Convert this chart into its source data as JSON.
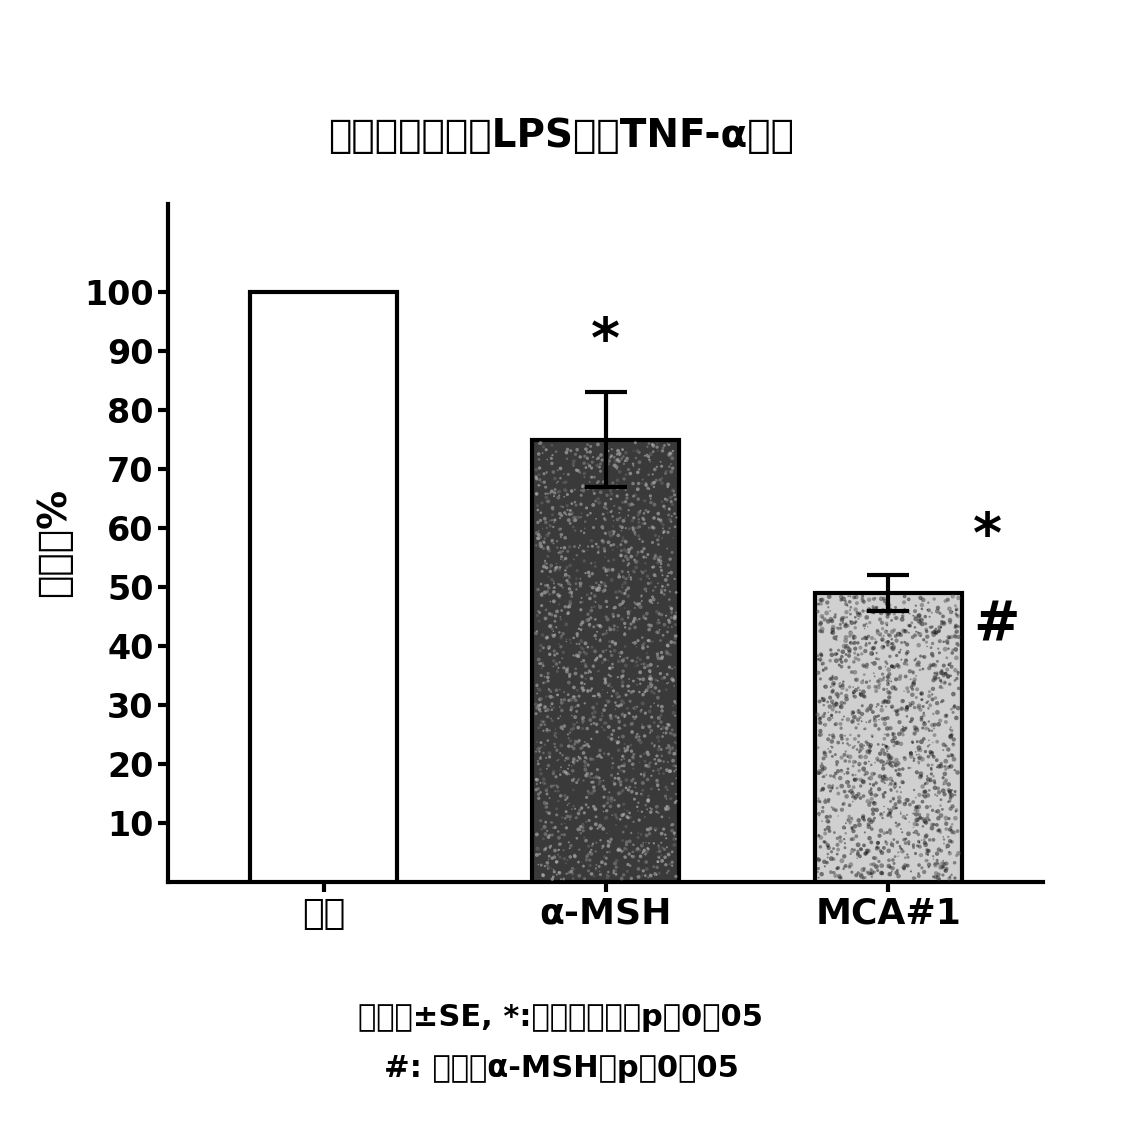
{
  "title": "人白细胞悬液中LPS诱导TNF-α累积",
  "ylabel": "载体的%",
  "categories": [
    "载体",
    "α-MSH",
    "MCA#1"
  ],
  "values": [
    100,
    75,
    49
  ],
  "errors": [
    0,
    8,
    3
  ],
  "yticks": [
    10,
    20,
    30,
    40,
    50,
    60,
    70,
    80,
    90,
    100
  ],
  "ylim": [
    0,
    115
  ],
  "footnote_line1": "平均数±SE, *:相对于载体组p＜0．05",
  "footnote_line2": "#: 相对于α-MSH组p＜0，05",
  "background_color": "#ffffff",
  "title_fontsize": 28,
  "tick_fontsize": 24,
  "ylabel_fontsize": 28,
  "xlabel_fontsize": 26,
  "annotation_fontsize": 40,
  "footnote_fontsize": 22,
  "bar_width": 0.52,
  "xlim": [
    -0.55,
    2.55
  ]
}
